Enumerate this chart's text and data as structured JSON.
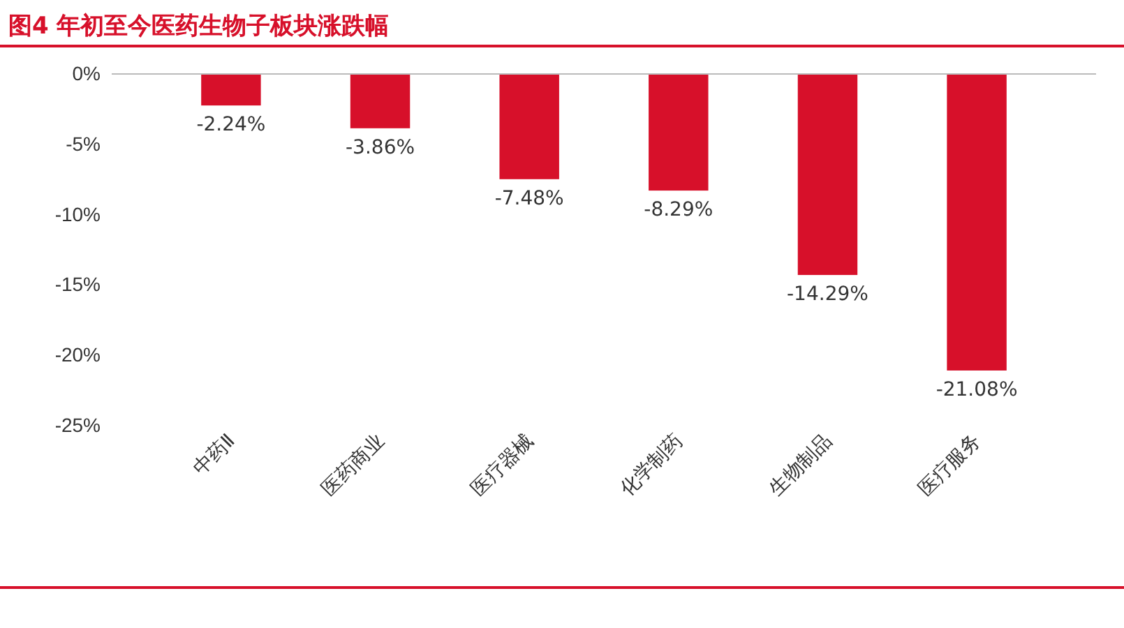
{
  "chart_data": {
    "type": "bar",
    "title": "图4  年初至今医药生物子板块涨跌幅",
    "categories": [
      "中药Ⅱ",
      "医药商业",
      "医疗器械",
      "化学制药",
      "生物制品",
      "医疗服务"
    ],
    "values": [
      -2.24,
      -3.86,
      -7.48,
      -8.29,
      -14.29,
      -21.08
    ],
    "color": "#d7102a",
    "value_labels": [
      "-2.24%",
      "-3.86%",
      "-7.48%",
      "-8.29%",
      "-14.29%",
      "-21.08%"
    ],
    "ylim": [
      -25,
      0
    ],
    "yticks": [
      {
        "value": 0,
        "label": "0%"
      },
      {
        "value": -5,
        "label": "-5%"
      },
      {
        "value": -10,
        "label": "-10%"
      },
      {
        "value": -15,
        "label": "-15%"
      },
      {
        "value": -20,
        "label": "-20%"
      },
      {
        "value": -25,
        "label": "-25%"
      }
    ],
    "grid": false
  }
}
